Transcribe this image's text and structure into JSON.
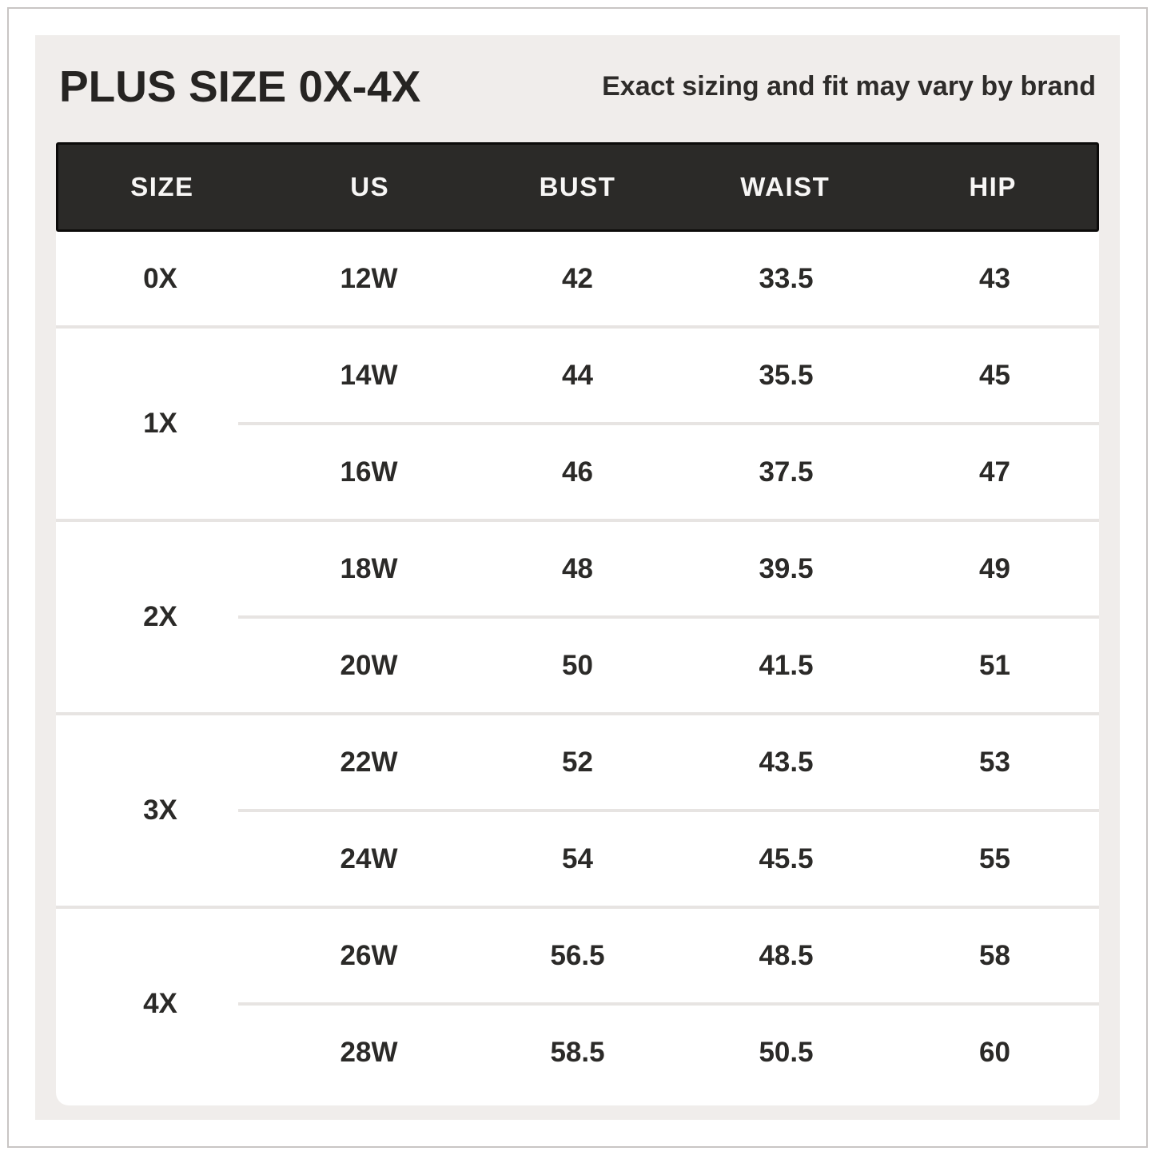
{
  "header": {
    "title": "PLUS SIZE 0X-4X",
    "subtitle": "Exact sizing and fit may vary by brand"
  },
  "table": {
    "columns": [
      "SIZE",
      "US",
      "BUST",
      "WAIST",
      "HIP"
    ],
    "groups": [
      {
        "size": "0X",
        "rows": [
          {
            "us": "12W",
            "bust": "42",
            "waist": "33.5",
            "hip": "43"
          }
        ]
      },
      {
        "size": "1X",
        "rows": [
          {
            "us": "14W",
            "bust": "44",
            "waist": "35.5",
            "hip": "45"
          },
          {
            "us": "16W",
            "bust": "46",
            "waist": "37.5",
            "hip": "47"
          }
        ]
      },
      {
        "size": "2X",
        "rows": [
          {
            "us": "18W",
            "bust": "48",
            "waist": "39.5",
            "hip": "49"
          },
          {
            "us": "20W",
            "bust": "50",
            "waist": "41.5",
            "hip": "51"
          }
        ]
      },
      {
        "size": "3X",
        "rows": [
          {
            "us": "22W",
            "bust": "52",
            "waist": "43.5",
            "hip": "53"
          },
          {
            "us": "24W",
            "bust": "54",
            "waist": "45.5",
            "hip": "55"
          }
        ]
      },
      {
        "size": "4X",
        "rows": [
          {
            "us": "26W",
            "bust": "56.5",
            "waist": "48.5",
            "hip": "58"
          },
          {
            "us": "28W",
            "bust": "58.5",
            "waist": "50.5",
            "hip": "60"
          }
        ]
      }
    ]
  },
  "chart_data": {
    "type": "table",
    "title": "PLUS SIZE 0X-4X",
    "subtitle": "Exact sizing and fit may vary by brand",
    "columns": [
      "SIZE",
      "US",
      "BUST",
      "WAIST",
      "HIP"
    ],
    "rows": [
      [
        "0X",
        "12W",
        42,
        33.5,
        43
      ],
      [
        "1X",
        "14W",
        44,
        35.5,
        45
      ],
      [
        "1X",
        "16W",
        46,
        37.5,
        47
      ],
      [
        "2X",
        "18W",
        48,
        39.5,
        49
      ],
      [
        "2X",
        "20W",
        50,
        41.5,
        51
      ],
      [
        "3X",
        "22W",
        52,
        43.5,
        53
      ],
      [
        "3X",
        "24W",
        54,
        45.5,
        55
      ],
      [
        "4X",
        "26W",
        56.5,
        48.5,
        58
      ],
      [
        "4X",
        "28W",
        58.5,
        50.5,
        60
      ]
    ]
  },
  "colors": {
    "background": "#f0edeb",
    "card": "#ffffff",
    "header_band": "#2b2a28",
    "header_text": "#f7f6f5",
    "divider": "#e7e4e2",
    "text": "#2b2a28",
    "frame_border": "#c9c5c4"
  }
}
